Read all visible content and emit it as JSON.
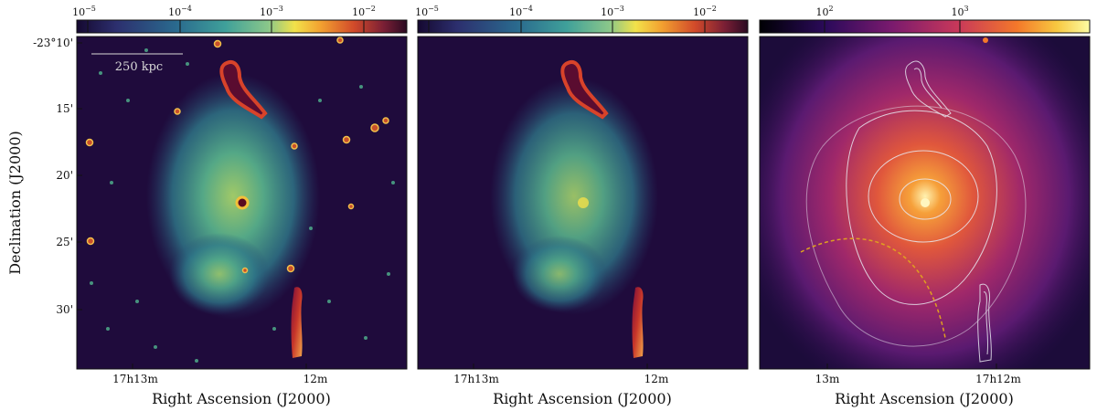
{
  "figure": {
    "ylabel": "Declination (J2000)",
    "panels": [
      {
        "id": "left",
        "map": "viridis",
        "colorbar_ticks": [
          {
            "base": "10",
            "exp": "−5"
          },
          {
            "base": "10",
            "exp": "−4"
          },
          {
            "base": "10",
            "exp": "−3"
          },
          {
            "base": "10",
            "exp": "−2"
          }
        ],
        "xlabel": "Right Ascension (J2000)",
        "xticks": [
          "17h13m",
          "12m"
        ],
        "yticks": [
          "-23°10'",
          "15'",
          "20'",
          "25'",
          "30'"
        ],
        "scalebar_label": "250 kpc"
      },
      {
        "id": "middle",
        "map": "viridis",
        "colorbar_ticks": [
          {
            "base": "10",
            "exp": "−5"
          },
          {
            "base": "10",
            "exp": "−4"
          },
          {
            "base": "10",
            "exp": "−3"
          },
          {
            "base": "10",
            "exp": "−2"
          }
        ],
        "xlabel": "Right Ascension (J2000)",
        "xticks": [
          "17h13m",
          "12m"
        ]
      },
      {
        "id": "right",
        "map": "inferno",
        "colorbar_ticks": [
          {
            "base": "10",
            "exp": "2"
          },
          {
            "base": "10",
            "exp": "3"
          }
        ],
        "xlabel": "Right Ascension (J2000)",
        "xticks": [
          "13m",
          "17h12m"
        ]
      }
    ]
  },
  "colors": {
    "viridis_bg": "#1f0b3c",
    "inferno_bg": "#1c0c3a",
    "contour": "#e8e8f0",
    "shock_arc": "#e0a020"
  }
}
